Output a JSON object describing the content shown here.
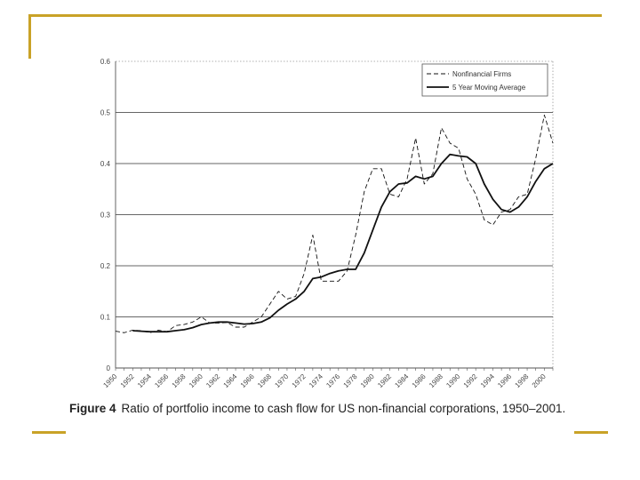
{
  "slide": {
    "accent_color": "#c9a227"
  },
  "caption": {
    "label": "Figure 4",
    "text": "Ratio of portfolio income to cash flow for US non-financial corporations, 1950–2001."
  },
  "chart_data": {
    "type": "line",
    "title": "",
    "xlabel": "",
    "ylabel": "",
    "xlim": [
      1950,
      2001
    ],
    "ylim": [
      0,
      0.6
    ],
    "grid": "horizontal",
    "yticks": [
      "0",
      "0.1",
      "0.2",
      "0.3",
      "0.4",
      "0.5",
      "0.6"
    ],
    "xticks": [
      "1950",
      "1952",
      "1954",
      "1956",
      "1958",
      "1960",
      "1962",
      "1964",
      "1966",
      "1968",
      "1970",
      "1972",
      "1974",
      "1976",
      "1978",
      "1980",
      "1982",
      "1984",
      "1986",
      "1988",
      "1990",
      "1992",
      "1994",
      "1996",
      "1998",
      "2000"
    ],
    "legend": {
      "position": "top-right"
    },
    "series": [
      {
        "name": "Nonfinancial Firms",
        "style": "dashed",
        "x": [
          1950,
          1951,
          1952,
          1953,
          1954,
          1955,
          1956,
          1957,
          1958,
          1959,
          1960,
          1961,
          1962,
          1963,
          1964,
          1965,
          1966,
          1967,
          1968,
          1969,
          1970,
          1971,
          1972,
          1973,
          1974,
          1975,
          1976,
          1977,
          1978,
          1979,
          1980,
          1981,
          1982,
          1983,
          1984,
          1985,
          1986,
          1987,
          1988,
          1989,
          1990,
          1991,
          1992,
          1993,
          1994,
          1995,
          1996,
          1997,
          1998,
          1999,
          2000,
          2001
        ],
        "values": [
          0.072,
          0.069,
          0.074,
          0.073,
          0.069,
          0.074,
          0.071,
          0.083,
          0.085,
          0.09,
          0.1,
          0.088,
          0.088,
          0.089,
          0.08,
          0.08,
          0.09,
          0.1,
          0.125,
          0.15,
          0.135,
          0.14,
          0.185,
          0.26,
          0.17,
          0.17,
          0.17,
          0.19,
          0.26,
          0.345,
          0.39,
          0.39,
          0.34,
          0.335,
          0.37,
          0.45,
          0.36,
          0.38,
          0.47,
          0.44,
          0.43,
          0.37,
          0.34,
          0.29,
          0.28,
          0.305,
          0.31,
          0.335,
          0.34,
          0.41,
          0.495,
          0.44
        ]
      },
      {
        "name": "5 Year Moving Average",
        "style": "solid",
        "x": [
          1952,
          1953,
          1954,
          1955,
          1956,
          1957,
          1958,
          1959,
          1960,
          1961,
          1962,
          1963,
          1964,
          1965,
          1966,
          1967,
          1968,
          1969,
          1970,
          1971,
          1972,
          1973,
          1974,
          1975,
          1976,
          1977,
          1978,
          1979,
          1980,
          1981,
          1982,
          1983,
          1984,
          1985,
          1986,
          1987,
          1988,
          1989,
          1990,
          1991,
          1992,
          1993,
          1994,
          1995,
          1996,
          1997,
          1998,
          1999,
          2000,
          2001
        ],
        "values": [
          0.073,
          0.072,
          0.071,
          0.071,
          0.071,
          0.073,
          0.075,
          0.079,
          0.085,
          0.088,
          0.09,
          0.09,
          0.088,
          0.086,
          0.087,
          0.09,
          0.098,
          0.113,
          0.125,
          0.135,
          0.15,
          0.175,
          0.178,
          0.185,
          0.19,
          0.193,
          0.193,
          0.225,
          0.27,
          0.315,
          0.345,
          0.36,
          0.362,
          0.375,
          0.37,
          0.375,
          0.4,
          0.418,
          0.415,
          0.413,
          0.4,
          0.36,
          0.33,
          0.31,
          0.305,
          0.315,
          0.335,
          0.365,
          0.39,
          0.4
        ]
      }
    ]
  }
}
